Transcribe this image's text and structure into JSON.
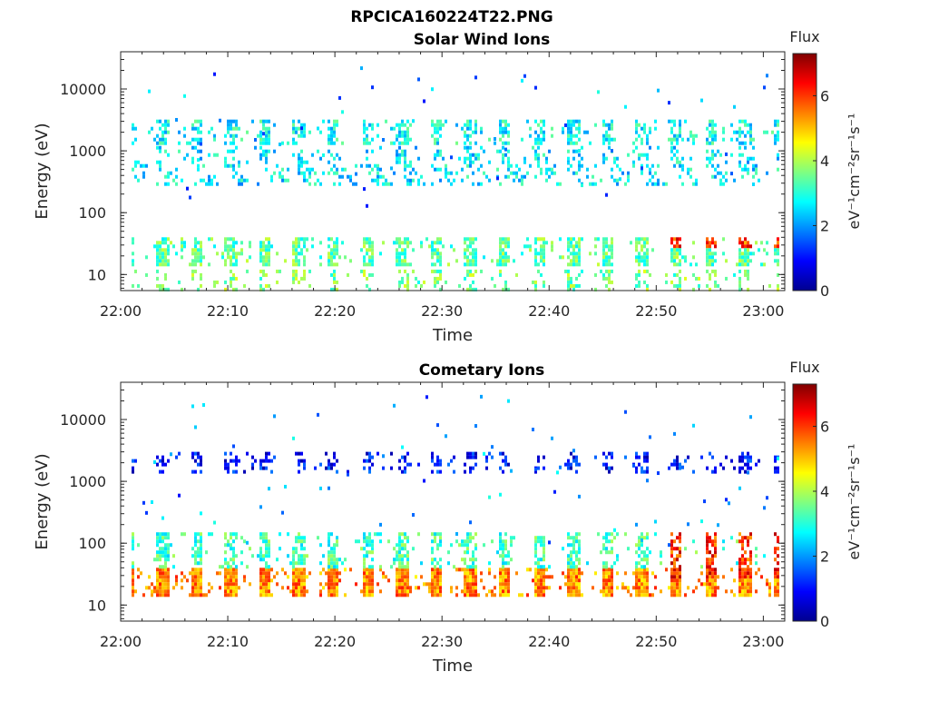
{
  "figure": {
    "title": "RPCICA160224T22.PNG"
  },
  "colormap": [
    "#00008f",
    "#0000ff",
    "#0080ff",
    "#00ffff",
    "#80ff80",
    "#ffff00",
    "#ff8000",
    "#ff0000",
    "#800000"
  ],
  "chart_data": [
    {
      "type": "heatmap",
      "title": "Solar Wind Ions",
      "xlabel": "Time",
      "ylabel": "Energy (eV)",
      "yscale": "log",
      "ylim": [
        5.5,
        40000
      ],
      "xlim_minutes": [
        0,
        62
      ],
      "x_ticks": [
        "22:00",
        "22:10",
        "22:20",
        "22:30",
        "22:40",
        "22:50",
        "23:00"
      ],
      "y_ticks": [
        "10",
        "100",
        "1000",
        "10000"
      ],
      "colorbar": {
        "label": "Flux",
        "unit": "eV⁻¹cm⁻²sr⁻¹s⁻¹",
        "range": [
          0,
          7.3
        ],
        "ticks": [
          "0",
          "2",
          "4",
          "6"
        ]
      },
      "pulse_period_minutes": 3.2,
      "bands": [
        {
          "e_low": 300,
          "e_high": 1200,
          "flux": 2.6,
          "density": 0.3,
          "shape": "drift"
        },
        {
          "e_low": 1300,
          "e_high": 3200,
          "flux": 2.8,
          "density": 0.45,
          "shape": "burst"
        },
        {
          "e_low": 14,
          "e_high": 40,
          "flux": 3.4,
          "density": 0.55,
          "shape": "burst"
        },
        {
          "e_low": 6,
          "e_high": 12,
          "flux": 3.6,
          "density": 0.25,
          "shape": "burst"
        }
      ],
      "late_enhancement": {
        "from_minute": 50,
        "e_low": 30,
        "e_high": 45,
        "flux": 5.0
      }
    },
    {
      "type": "heatmap",
      "title": "Cometary Ions",
      "xlabel": "Time",
      "ylabel": "Energy (eV)",
      "yscale": "log",
      "ylim": [
        5.5,
        40000
      ],
      "xlim_minutes": [
        0,
        62
      ],
      "x_ticks": [
        "22:00",
        "22:10",
        "22:20",
        "22:30",
        "22:40",
        "22:50",
        "23:00"
      ],
      "y_ticks": [
        "10",
        "100",
        "1000",
        "10000"
      ],
      "colorbar": {
        "label": "Flux",
        "unit": "eV⁻¹cm⁻²sr⁻¹s⁻¹",
        "range": [
          0,
          7.3
        ],
        "ticks": [
          "0",
          "2",
          "4",
          "6"
        ]
      },
      "pulse_period_minutes": 3.2,
      "bands": [
        {
          "e_low": 14,
          "e_high": 40,
          "flux": 5.4,
          "density": 0.8,
          "shape": "burst"
        },
        {
          "e_low": 40,
          "e_high": 150,
          "flux": 3.2,
          "density": 0.45,
          "shape": "burst"
        },
        {
          "e_low": 1500,
          "e_high": 3000,
          "flux": 1.0,
          "density": 0.3,
          "shape": "burst"
        }
      ],
      "late_enhancement": {
        "from_minute": 50,
        "e_low": 30,
        "e_high": 300,
        "flux": 5.2
      }
    }
  ]
}
